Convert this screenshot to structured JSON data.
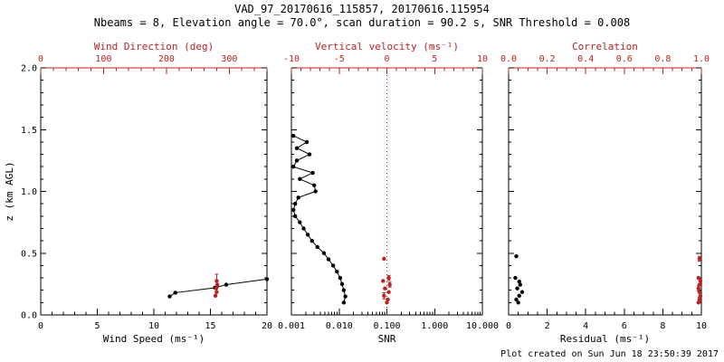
{
  "header": {
    "title": "VAD_97_20170616_115857, 20170616.115954",
    "subtitle": "Nbeams = 8, Elevation angle = 70.0°, scan duration = 90.2 s, SNR Threshold = 0.008"
  },
  "footer": {
    "created": "Plot created on Sun Jun 18 23:50:39 2017"
  },
  "colors": {
    "black": "#000000",
    "red": "#bb2222",
    "background": "#ffffff"
  },
  "chart_data": {
    "type": "line",
    "description": "Three-panel VAD wind profile: wind speed/direction, SNR/vertical velocity, residual/correlation versus height",
    "y_axis": {
      "label": "z (km AGL)",
      "min": 0,
      "max": 2,
      "ticks": [
        0.0,
        0.5,
        1.0,
        1.5,
        2.0
      ],
      "tick_labels": [
        "0.0",
        "0.5",
        "1.0",
        "1.5",
        "2.0"
      ],
      "minor_step": 0.1
    },
    "panels": [
      {
        "name": "wind",
        "bottom_axis": {
          "label": "Wind Speed (ms⁻¹)",
          "min": 0,
          "max": 20,
          "major_ticks": [
            0,
            5,
            10,
            15,
            20
          ],
          "tick_labels": [
            "0",
            "5",
            "10",
            "15",
            "20"
          ],
          "minor_step": 1
        },
        "top_axis": {
          "label": "Wind Direction (deg)",
          "min": 0,
          "max": 360,
          "major_ticks": [
            0,
            100,
            200,
            300
          ],
          "tick_labels": [
            "0",
            "100",
            "200",
            "300"
          ],
          "minor_step": 20
        },
        "series": [
          {
            "name": "wind-speed",
            "axis": "bottom",
            "color": "black",
            "line": true,
            "points": [
              [
                11.4,
                0.15
              ],
              [
                11.9,
                0.18
              ],
              [
                15.4,
                0.22
              ],
              [
                16.4,
                0.245
              ],
              [
                20.0,
                0.29
              ]
            ]
          },
          {
            "name": "wind-direction",
            "axis": "top",
            "color": "red",
            "line": false,
            "points": [
              [
                278,
                0.155
              ],
              [
                280,
                0.185
              ],
              [
                279,
                0.215
              ],
              [
                281,
                0.245
              ],
              [
                280,
                0.275,
                0.055
              ]
            ]
          }
        ]
      },
      {
        "name": "snr",
        "bottom_axis": {
          "label": "SNR",
          "scale": "log",
          "min": 0.001,
          "max": 10,
          "major_ticks": [
            0.001,
            0.01,
            0.1,
            1,
            10
          ],
          "tick_labels": [
            "0.001",
            "0.010",
            "0.100",
            "1.000",
            "10.000"
          ]
        },
        "top_axis": {
          "label": "Vertical velocity (ms⁻¹)",
          "min": -10,
          "max": 10,
          "major_ticks": [
            -10,
            -5,
            0,
            5,
            10
          ],
          "tick_labels": [
            "-10",
            "-5",
            "0",
            "5",
            "10"
          ],
          "minor_step": 1
        },
        "ref_line": {
          "axis": "top",
          "value": 0,
          "color": "red",
          "style": "dotted"
        },
        "series": [
          {
            "name": "snr-profile",
            "axis": "bottom",
            "color": "black",
            "line": true,
            "points": [
              [
                0.0011,
                1.45
              ],
              [
                0.0021,
                1.4
              ],
              [
                0.0013,
                1.35
              ],
              [
                0.0024,
                1.3
              ],
              [
                0.0013,
                1.25
              ],
              [
                0.0011,
                1.2
              ],
              [
                0.0028,
                1.15
              ],
              [
                0.0015,
                1.1
              ],
              [
                0.003,
                1.05
              ],
              [
                0.0032,
                1.0
              ],
              [
                0.0014,
                0.95
              ],
              [
                0.0012,
                0.9
              ],
              [
                0.0011,
                0.85
              ],
              [
                0.0012,
                0.8
              ],
              [
                0.0015,
                0.75
              ],
              [
                0.0018,
                0.7
              ],
              [
                0.0022,
                0.65
              ],
              [
                0.0027,
                0.6
              ],
              [
                0.0035,
                0.55
              ],
              [
                0.0048,
                0.5
              ],
              [
                0.006,
                0.45
              ],
              [
                0.0075,
                0.4
              ],
              [
                0.009,
                0.35
              ],
              [
                0.0105,
                0.3
              ],
              [
                0.0115,
                0.25
              ],
              [
                0.0125,
                0.2
              ],
              [
                0.0135,
                0.15
              ],
              [
                0.0125,
                0.1
              ]
            ]
          },
          {
            "name": "vertical-velocity",
            "axis": "top",
            "color": "red",
            "line": false,
            "points": [
              [
                -0.3,
                0.455
              ],
              [
                0.2,
                0.3,
                0.02
              ],
              [
                -0.4,
                0.275
              ],
              [
                0.3,
                0.245,
                0.02
              ],
              [
                -0.2,
                0.215
              ],
              [
                0.2,
                0.185
              ],
              [
                -0.3,
                0.155,
                0.025
              ],
              [
                0.1,
                0.125
              ],
              [
                0.0,
                0.1
              ]
            ]
          }
        ]
      },
      {
        "name": "residual",
        "bottom_axis": {
          "label": "Residual (ms⁻¹)",
          "min": 0,
          "max": 10,
          "major_ticks": [
            0,
            2,
            4,
            6,
            8,
            10
          ],
          "tick_labels": [
            "0",
            "2",
            "4",
            "6",
            "8",
            "10"
          ],
          "minor_step": 0.5
        },
        "top_axis": {
          "label": "Correlation",
          "min": 0,
          "max": 1,
          "major_ticks": [
            0.0,
            0.2,
            0.4,
            0.6,
            0.8,
            1.0
          ],
          "tick_labels": [
            "0.0",
            "0.2",
            "0.4",
            "0.6",
            "0.8",
            "1.0"
          ],
          "minor_step": 0.05
        },
        "series": [
          {
            "name": "residual",
            "axis": "bottom",
            "color": "black",
            "line": false,
            "points": [
              [
                0.4,
                0.475
              ],
              [
                0.35,
                0.3
              ],
              [
                0.55,
                0.27
              ],
              [
                0.6,
                0.245
              ],
              [
                0.45,
                0.215
              ],
              [
                0.7,
                0.185
              ],
              [
                0.55,
                0.155
              ],
              [
                0.4,
                0.125
              ],
              [
                0.5,
                0.1
              ]
            ]
          },
          {
            "name": "correlation",
            "axis": "top",
            "color": "red",
            "line": false,
            "points": [
              [
                0.99,
                0.455,
                0.02
              ],
              [
                0.985,
                0.3
              ],
              [
                0.995,
                0.275,
                0.02
              ],
              [
                0.99,
                0.245
              ],
              [
                0.985,
                0.215,
                0.02
              ],
              [
                0.99,
                0.185
              ],
              [
                0.995,
                0.155
              ],
              [
                0.99,
                0.125,
                0.02
              ],
              [
                0.985,
                0.1
              ]
            ]
          }
        ]
      }
    ]
  }
}
